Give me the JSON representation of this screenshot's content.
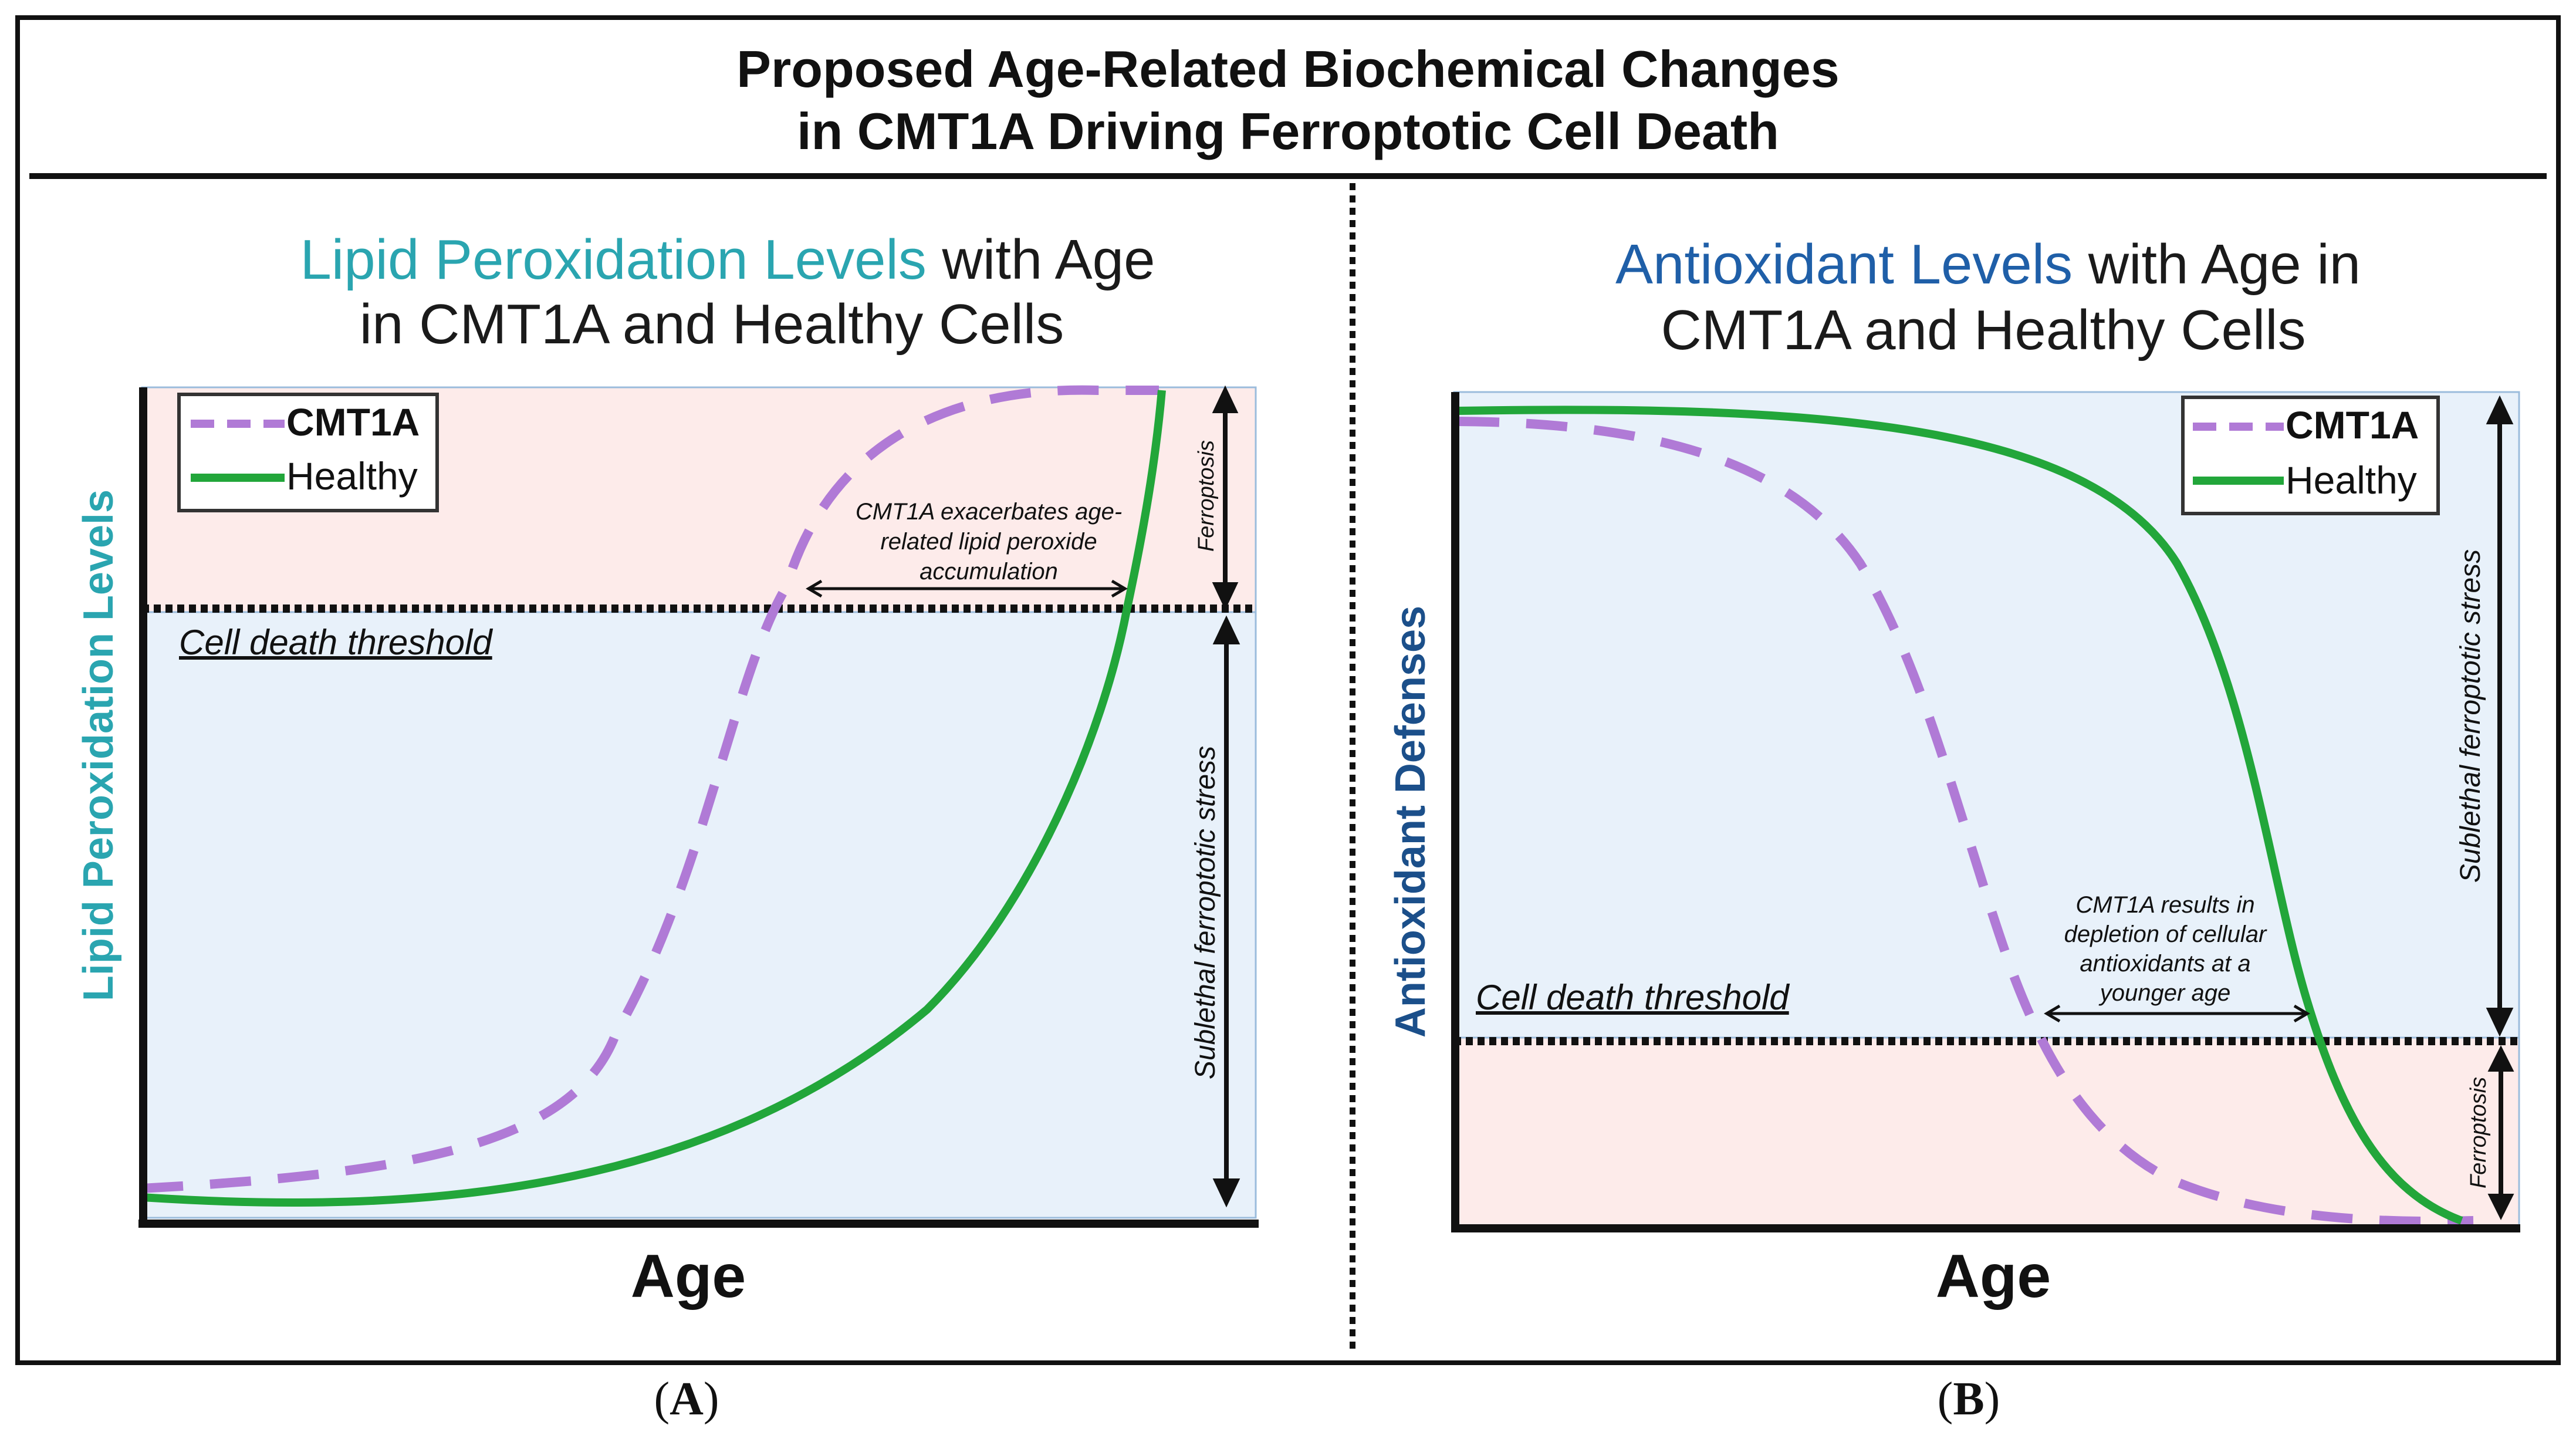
{
  "header": {
    "title_line1": "Proposed Age-Related Biochemical Changes",
    "title_line2": "in CMT1A Driving Ferroptotic Cell Death"
  },
  "panel_a": {
    "title_line1_accent": "Lipid Peroxidation Levels",
    "title_line1_rest": " with Age",
    "title_line2": "in CMT1A and Healthy Cells",
    "accent_color": "#2aa5b0",
    "y_label": "Lipid Peroxidation Levels",
    "x_label": "Age",
    "threshold_label": "Cell death threshold",
    "annotation": [
      "CMT1A exacerbates age-",
      "related lipid peroxide",
      "accumulation"
    ],
    "zone_upper_label": "Ferroptosis",
    "zone_lower_label": "Sublethal ferroptotic stress",
    "caption_letter": "A"
  },
  "panel_b": {
    "title_line1_accent": "Antioxidant Levels",
    "title_line1_rest": " with Age in",
    "title_line2": "CMT1A and Healthy Cells",
    "accent_color": "#1f5fa8",
    "y_label": "Antioxidant Defenses",
    "y_label_color": "#1b4f8a",
    "x_label": "Age",
    "threshold_label": "Cell death threshold",
    "annotation": [
      "CMT1A results in",
      "depletion of cellular",
      "antioxidants at a",
      "younger age"
    ],
    "zone_upper_label": "Sublethal ferroptotic stress",
    "zone_lower_label": "Ferroptosis",
    "caption_letter": "B"
  },
  "legend": {
    "cmt1a": "CMT1A",
    "healthy": "Healthy"
  },
  "colors": {
    "cmt1a": "#b07ad6",
    "healthy": "#22a63a",
    "ferroptosis_zone": "#fdebea",
    "sublethal_zone": "#e8f1fa",
    "zone_border": "#9bbcdc"
  }
}
